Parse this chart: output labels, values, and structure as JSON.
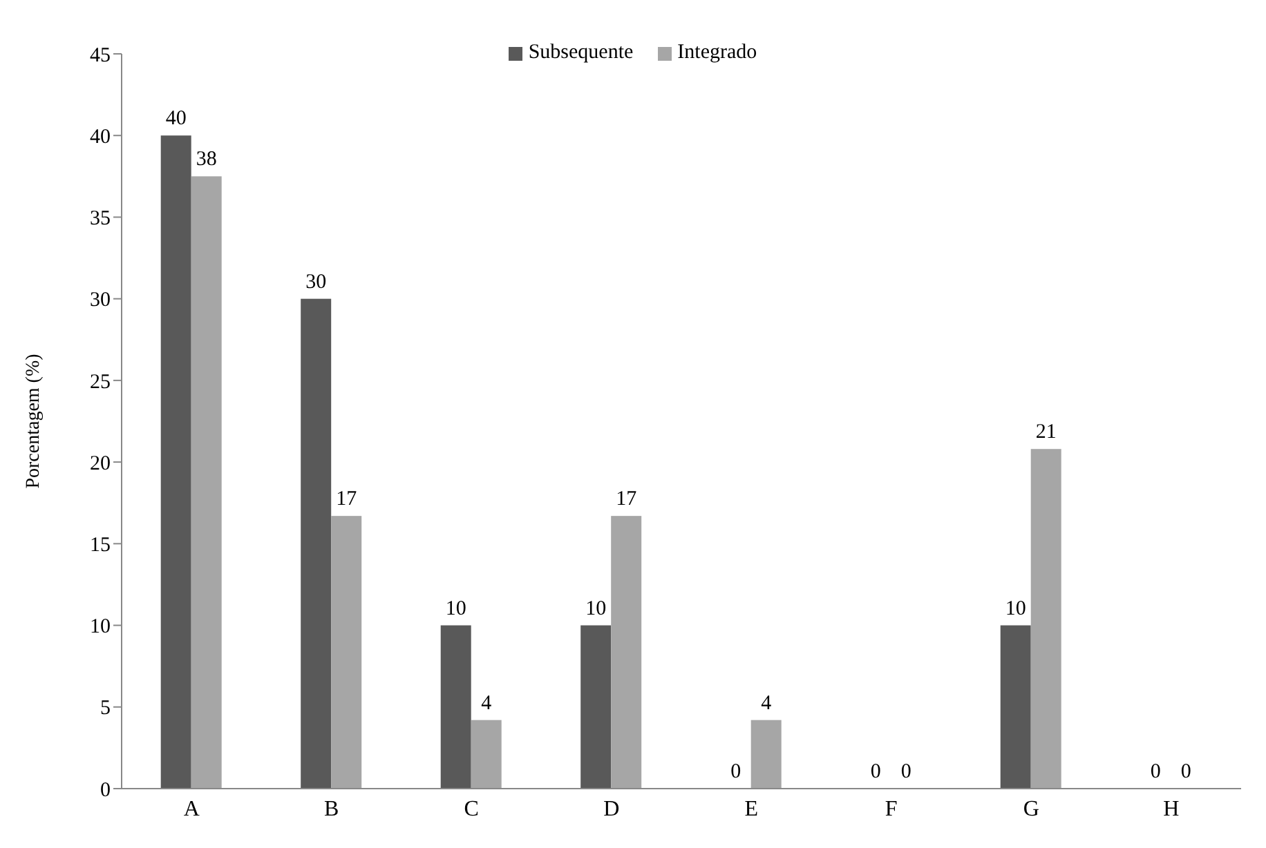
{
  "chart_data": {
    "type": "bar",
    "ylabel": "Porcentagem (%)",
    "categories": [
      "A",
      "B",
      "C",
      "D",
      "E",
      "F",
      "G",
      "H"
    ],
    "series": [
      {
        "name": "Subsequente",
        "color": "#595959",
        "values": [
          40,
          30,
          10,
          10,
          0,
          0,
          10,
          0
        ],
        "value_labels": [
          "40",
          "30",
          "10",
          "10",
          "0",
          "0",
          "10",
          "0"
        ]
      },
      {
        "name": "Integrado",
        "color": "#a6a6a6",
        "values": [
          37.5,
          16.7,
          4.2,
          16.7,
          4.2,
          0,
          20.8,
          0
        ],
        "value_labels": [
          "38",
          "17",
          "4",
          "17",
          "4",
          "0",
          "21",
          "0"
        ]
      }
    ],
    "ylim": [
      0,
      45
    ],
    "yticks": [
      0,
      5,
      10,
      15,
      20,
      25,
      30,
      35,
      40,
      45
    ],
    "grid": false,
    "legend": "top"
  }
}
